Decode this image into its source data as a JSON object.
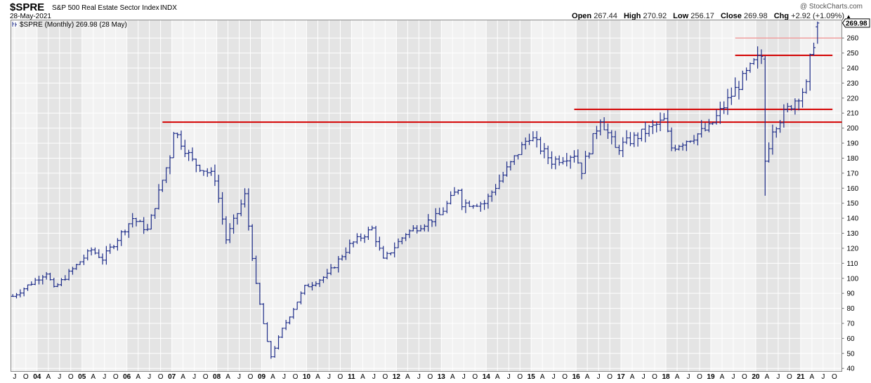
{
  "header": {
    "symbol": "$SPRE",
    "name": "S&P 500 Real Estate Sector Index",
    "exchange": "INDX",
    "date": "28-May-2021",
    "copyright": "@ StockCharts.com",
    "open_label": "Open",
    "open": "267.44",
    "high_label": "High",
    "high": "270.92",
    "low_label": "Low",
    "low": "256.17",
    "close_label": "Close",
    "close": "269.98",
    "chg_label": "Chg",
    "chg": "+2.92 (+1.09%)"
  },
  "legend": "$SPRE (Monthly) 269.98 (28 May)",
  "last_price_tag": "269.98",
  "colors": {
    "bars": "#1f2e8a",
    "support_line": "#d40000",
    "resistance_line_light": "#f0a0a0",
    "band_light": "#f2f2f2",
    "band_dark": "#e4e4e4",
    "grid": "#ffffff"
  },
  "chart_data": {
    "type": "ohlc",
    "interval": "monthly",
    "y_ticks": [
      40,
      50,
      60,
      70,
      80,
      90,
      100,
      110,
      120,
      130,
      140,
      150,
      160,
      170,
      180,
      190,
      200,
      210,
      220,
      230,
      240,
      250,
      260
    ],
    "ylim": [
      38,
      272
    ],
    "x_range": [
      "2003-06",
      "2021-11"
    ],
    "x_tick_labels": [
      "J",
      "O",
      "04",
      "A",
      "J",
      "O",
      "05",
      "A",
      "J",
      "O",
      "06",
      "A",
      "J",
      "O",
      "07",
      "A",
      "J",
      "O",
      "08",
      "A",
      "J",
      "O",
      "09",
      "A",
      "J",
      "O",
      "10",
      "A",
      "J",
      "O",
      "11",
      "A",
      "J",
      "O",
      "12",
      "A",
      "J",
      "O",
      "13",
      "A",
      "J",
      "O",
      "14",
      "A",
      "J",
      "O",
      "15",
      "A",
      "J",
      "O",
      "16",
      "A",
      "J",
      "O",
      "17",
      "A",
      "J",
      "O",
      "18",
      "A",
      "J",
      "O",
      "19",
      "A",
      "J",
      "O",
      "20",
      "A",
      "J",
      "O",
      "21",
      "A",
      "J",
      "O"
    ],
    "horizontal_lines": [
      {
        "value": 204,
        "from": "2006-11",
        "to": "2021-11",
        "style": "dark"
      },
      {
        "value": 212.5,
        "from": "2016-01",
        "to": "2021-08",
        "style": "dark"
      },
      {
        "value": 248.5,
        "from": "2019-08",
        "to": "2021-08",
        "style": "dark"
      },
      {
        "value": 260,
        "from": "2019-08",
        "to": "2021-11",
        "style": "light"
      }
    ],
    "anchors": [
      [
        "2003-06",
        88
      ],
      [
        "2004-03",
        104
      ],
      [
        "2004-05",
        93
      ],
      [
        "2005-03",
        119
      ],
      [
        "2005-06",
        113
      ],
      [
        "2006-02",
        140
      ],
      [
        "2006-06",
        132
      ],
      [
        "2006-12",
        182
      ],
      [
        "2007-01",
        199
      ],
      [
        "2007-06",
        178
      ],
      [
        "2007-12",
        167
      ],
      [
        "2008-03",
        126
      ],
      [
        "2008-08",
        155
      ],
      [
        "2008-11",
        95
      ],
      [
        "2009-02",
        57
      ],
      [
        "2009-03",
        48
      ],
      [
        "2009-06",
        66
      ],
      [
        "2009-12",
        94
      ],
      [
        "2010-06",
        102
      ],
      [
        "2010-12",
        122
      ],
      [
        "2011-06",
        133
      ],
      [
        "2011-09",
        112
      ],
      [
        "2012-03",
        130
      ],
      [
        "2012-12",
        142
      ],
      [
        "2013-05",
        160
      ],
      [
        "2013-06",
        150
      ],
      [
        "2013-12",
        150
      ],
      [
        "2014-12",
        195
      ],
      [
        "2015-06",
        178
      ],
      [
        "2015-12",
        183
      ],
      [
        "2016-02",
        172
      ],
      [
        "2016-07",
        207
      ],
      [
        "2016-11",
        186
      ],
      [
        "2017-12",
        205
      ],
      [
        "2018-02",
        187
      ],
      [
        "2018-12",
        200
      ],
      [
        "2019-06",
        222
      ],
      [
        "2019-12",
        243
      ],
      [
        "2020-02",
        248
      ],
      [
        "2020-03",
        178
      ],
      [
        "2020-05",
        200
      ],
      [
        "2020-12",
        222
      ],
      [
        "2021-02",
        228
      ],
      [
        "2021-03",
        245
      ],
      [
        "2021-05",
        270
      ]
    ],
    "known_bars": {
      "2020-03": [
        246,
        248,
        155,
        178
      ],
      "2021-05": [
        267.44,
        270.92,
        256.17,
        269.98
      ]
    }
  }
}
